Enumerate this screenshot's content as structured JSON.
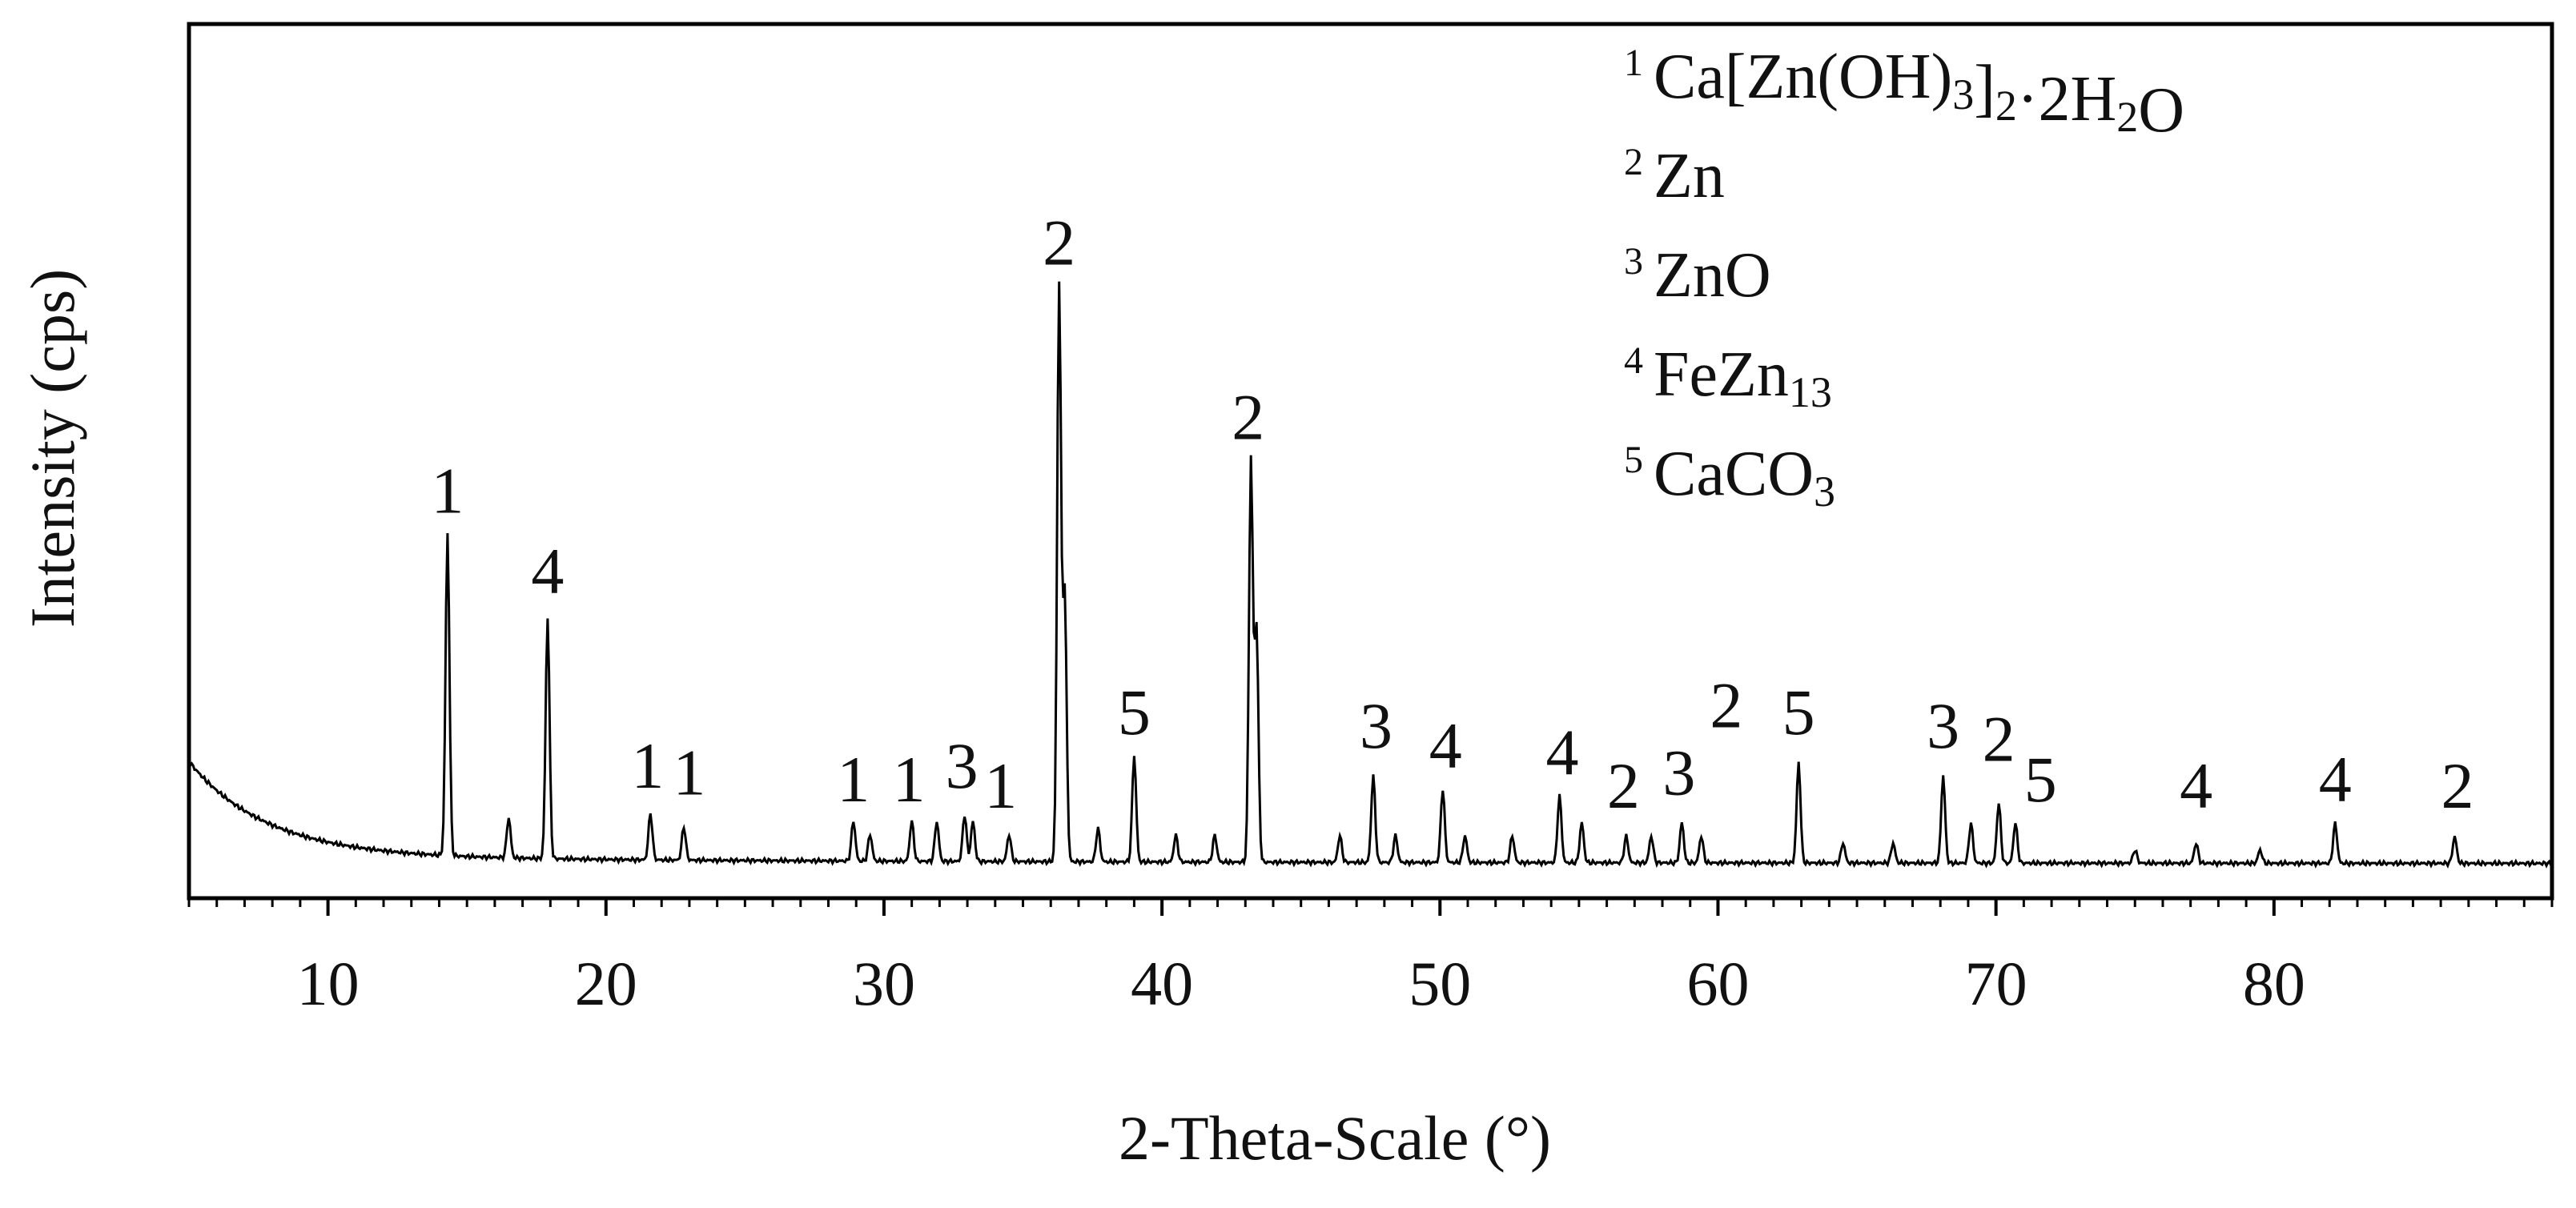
{
  "chart_data": {
    "type": "line",
    "xlabel": "2-Theta-Scale (°)",
    "ylabel": "Intensity (cps)",
    "xlim": [
      5,
      90
    ],
    "ylim": [
      0,
      100
    ],
    "grid": false,
    "legend_position": "top-right",
    "x_ticks": [
      10,
      20,
      30,
      40,
      50,
      60,
      70,
      80
    ],
    "x_tick_labels": [
      "10",
      "20",
      "30",
      "40",
      "50",
      "60",
      "70",
      "80"
    ],
    "legend": [
      {
        "number": "1",
        "phase": "Ca[Zn(OH)",
        "sub": "3",
        "mid": "]",
        "sub2": "2",
        "tail": "·2H",
        "sub3": "2",
        "end": "O"
      },
      {
        "number": "2",
        "phase": "Zn"
      },
      {
        "number": "3",
        "phase": "ZnO"
      },
      {
        "number": "4",
        "phase": "FeZn",
        "sub": "13"
      },
      {
        "number": "5",
        "phase": "CaCO",
        "sub": "3"
      }
    ],
    "series": [
      {
        "peaks": [
          {
            "x": 14.3,
            "y": 48
          },
          {
            "x": 16.5,
            "y": 6
          },
          {
            "x": 17.9,
            "y": 36
          },
          {
            "x": 21.6,
            "y": 7
          },
          {
            "x": 22.8,
            "y": 5
          },
          {
            "x": 28.9,
            "y": 6
          },
          {
            "x": 29.5,
            "y": 4
          },
          {
            "x": 31.0,
            "y": 6
          },
          {
            "x": 31.9,
            "y": 6
          },
          {
            "x": 32.9,
            "y": 7
          },
          {
            "x": 33.2,
            "y": 6
          },
          {
            "x": 34.5,
            "y": 4
          },
          {
            "x": 36.3,
            "y": 86
          },
          {
            "x": 36.5,
            "y": 40
          },
          {
            "x": 37.7,
            "y": 5
          },
          {
            "x": 39.0,
            "y": 16
          },
          {
            "x": 40.5,
            "y": 4
          },
          {
            "x": 41.9,
            "y": 4
          },
          {
            "x": 43.2,
            "y": 60
          },
          {
            "x": 43.4,
            "y": 35
          },
          {
            "x": 46.4,
            "y": 4
          },
          {
            "x": 47.6,
            "y": 13
          },
          {
            "x": 48.4,
            "y": 4
          },
          {
            "x": 50.1,
            "y": 11
          },
          {
            "x": 50.9,
            "y": 4
          },
          {
            "x": 52.6,
            "y": 4
          },
          {
            "x": 54.3,
            "y": 10
          },
          {
            "x": 55.1,
            "y": 6
          },
          {
            "x": 56.7,
            "y": 4
          },
          {
            "x": 57.6,
            "y": 4
          },
          {
            "x": 58.7,
            "y": 6
          },
          {
            "x": 59.4,
            "y": 4
          },
          {
            "x": 62.9,
            "y": 15
          },
          {
            "x": 64.5,
            "y": 3
          },
          {
            "x": 66.3,
            "y": 3
          },
          {
            "x": 68.1,
            "y": 13
          },
          {
            "x": 69.1,
            "y": 6
          },
          {
            "x": 70.1,
            "y": 9
          },
          {
            "x": 70.7,
            "y": 6
          },
          {
            "x": 75.0,
            "y": 2
          },
          {
            "x": 77.2,
            "y": 3
          },
          {
            "x": 79.5,
            "y": 2
          },
          {
            "x": 82.2,
            "y": 6
          },
          {
            "x": 86.5,
            "y": 4
          }
        ]
      }
    ],
    "annotations": [
      {
        "text": "1",
        "x": 14.3,
        "y": 54
      },
      {
        "text": "4",
        "x": 17.9,
        "y": 42
      },
      {
        "text": "1",
        "x": 21.5,
        "y": 13
      },
      {
        "text": "1",
        "x": 23.0,
        "y": 12
      },
      {
        "text": "1",
        "x": 28.9,
        "y": 11
      },
      {
        "text": "1",
        "x": 30.9,
        "y": 11
      },
      {
        "text": "3",
        "x": 32.8,
        "y": 13
      },
      {
        "text": "1",
        "x": 34.2,
        "y": 10
      },
      {
        "text": "2",
        "x": 36.3,
        "y": 91
      },
      {
        "text": "2",
        "x": 43.1,
        "y": 65
      },
      {
        "text": "5",
        "x": 39.0,
        "y": 21
      },
      {
        "text": "3",
        "x": 47.7,
        "y": 19
      },
      {
        "text": "4",
        "x": 50.2,
        "y": 16
      },
      {
        "text": "4",
        "x": 54.4,
        "y": 15
      },
      {
        "text": "2",
        "x": 56.6,
        "y": 10
      },
      {
        "text": "3",
        "x": 58.6,
        "y": 12
      },
      {
        "text": "2",
        "x": 60.3,
        "y": 22
      },
      {
        "text": "5",
        "x": 62.9,
        "y": 21
      },
      {
        "text": "3",
        "x": 68.1,
        "y": 19
      },
      {
        "text": "2",
        "x": 70.1,
        "y": 17
      },
      {
        "text": "5",
        "x": 71.6,
        "y": 11
      },
      {
        "text": "4",
        "x": 77.2,
        "y": 10
      },
      {
        "text": "4",
        "x": 82.2,
        "y": 11
      },
      {
        "text": "2",
        "x": 86.6,
        "y": 10
      }
    ]
  }
}
